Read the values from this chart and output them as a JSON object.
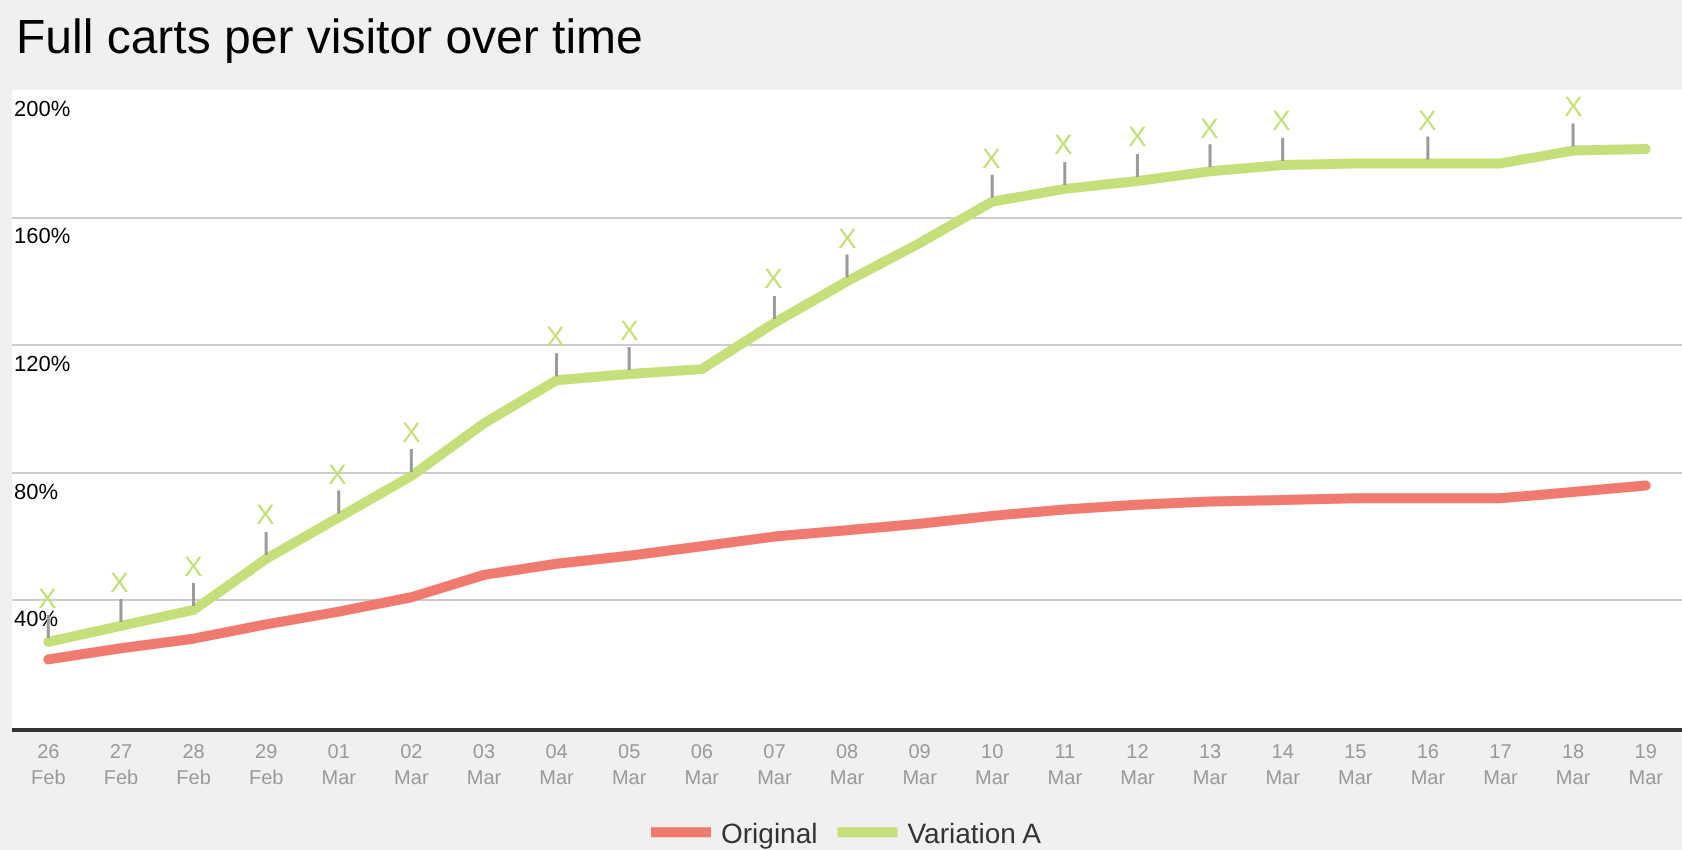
{
  "chart_data": {
    "type": "line",
    "title": "Full carts per visitor over time",
    "categories": [
      "26\nFeb",
      "27\nFeb",
      "28\nFeb",
      "29\nFeb",
      "01\nMar",
      "02\nMar",
      "03\nMar",
      "04\nMar",
      "05\nMar",
      "06\nMar",
      "07\nMar",
      "08\nMar",
      "09\nMar",
      "10\nMar",
      "11\nMar",
      "12\nMar",
      "13\nMar",
      "14\nMar",
      "15\nMar",
      "16\nMar",
      "17\nMar",
      "18\nMar",
      "19\nMar"
    ],
    "series": [
      {
        "name": "Original",
        "color": "#f07a6f",
        "values": [
          21.5,
          25,
          28,
          32.5,
          36.5,
          41,
          48,
          51.5,
          54,
          57,
          60,
          62,
          64,
          66.5,
          68.5,
          70,
          71,
          71.5,
          72,
          72,
          72,
          74,
          76
        ]
      },
      {
        "name": "Variation A",
        "color": "#c5e07b",
        "values": [
          27,
          32,
          37,
          53,
          66,
          79,
          95.5,
          109,
          111,
          112.5,
          127,
          140,
          152,
          165,
          169,
          171.5,
          174.5,
          176.5,
          177,
          177,
          177,
          181,
          181.5
        ],
        "value_labels": [
          "X",
          "X",
          "X",
          "X",
          "X",
          "X",
          null,
          "X",
          "X",
          null,
          "X",
          "X",
          null,
          "X",
          "X",
          "X",
          "X",
          "X",
          null,
          "X",
          null,
          "X",
          null
        ]
      }
    ],
    "ylim": [
      0,
      200
    ],
    "yticks": [
      {
        "value": 40,
        "label": "40%"
      },
      {
        "value": 80,
        "label": "80%"
      },
      {
        "value": 120,
        "label": "120%"
      },
      {
        "value": 160,
        "label": "160%"
      },
      {
        "value": 200,
        "label": "200%"
      }
    ],
    "grid": "y",
    "legend": "bottom",
    "line_style": "solid"
  }
}
